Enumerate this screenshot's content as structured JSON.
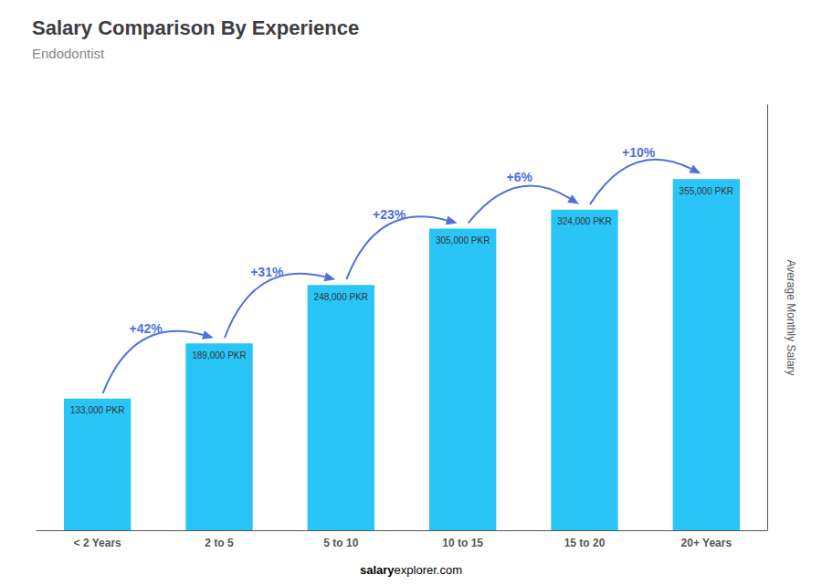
{
  "chart_data": {
    "type": "bar",
    "title": "Salary Comparison By Experience",
    "subtitle": "Endodontist",
    "categories": [
      "< 2 Years",
      "2 to 5",
      "5 to 10",
      "10 to 15",
      "15 to 20",
      "20+ Years"
    ],
    "values": [
      133000,
      189000,
      248000,
      305000,
      324000,
      355000
    ],
    "value_labels": [
      "133,000 PKR",
      "189,000 PKR",
      "248,000 PKR",
      "305,000 PKR",
      "324,000 PKR",
      "355,000 PKR"
    ],
    "data_labels": true,
    "annotations": [
      "+42%",
      "+31%",
      "+23%",
      "+6%",
      "+10%"
    ],
    "ylabel": "Average Monthly Salary",
    "footer": [
      "salary",
      "explorer.com"
    ],
    "color": "#29C5F6",
    "ylim": [
      0,
      430000
    ],
    "grid": false,
    "tick_labels": "x"
  }
}
